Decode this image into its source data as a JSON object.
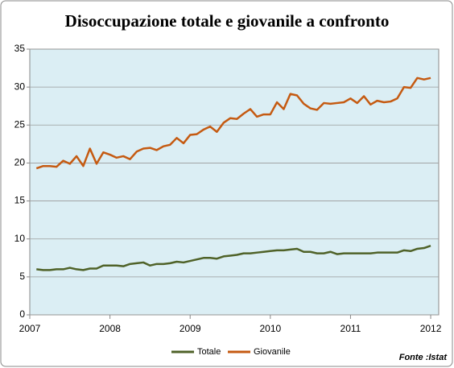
{
  "chart_data": {
    "type": "line",
    "title": "Disoccupazione totale e giovanile a confronto",
    "source": "Fonte :Istat",
    "x": [
      2007.083,
      2007.167,
      2007.25,
      2007.333,
      2007.417,
      2007.5,
      2007.583,
      2007.667,
      2007.75,
      2007.833,
      2007.917,
      2008.0,
      2008.083,
      2008.167,
      2008.25,
      2008.333,
      2008.417,
      2008.5,
      2008.583,
      2008.667,
      2008.75,
      2008.833,
      2008.917,
      2009.0,
      2009.083,
      2009.167,
      2009.25,
      2009.333,
      2009.417,
      2009.5,
      2009.583,
      2009.667,
      2009.75,
      2009.833,
      2009.917,
      2010.0,
      2010.083,
      2010.167,
      2010.25,
      2010.333,
      2010.417,
      2010.5,
      2010.583,
      2010.667,
      2010.75,
      2010.833,
      2010.917,
      2011.0,
      2011.083,
      2011.167,
      2011.25,
      2011.333,
      2011.417,
      2011.5,
      2011.583,
      2011.667,
      2011.75,
      2011.833,
      2011.917,
      2012.0
    ],
    "series": [
      {
        "name": "Totale",
        "color": "#4f6228",
        "values": [
          6.0,
          5.9,
          5.9,
          6.0,
          6.0,
          6.2,
          6.0,
          5.9,
          6.1,
          6.1,
          6.5,
          6.5,
          6.5,
          6.4,
          6.7,
          6.8,
          6.9,
          6.5,
          6.7,
          6.7,
          6.8,
          7.0,
          6.9,
          7.1,
          7.3,
          7.5,
          7.5,
          7.4,
          7.7,
          7.8,
          7.9,
          8.1,
          8.1,
          8.2,
          8.3,
          8.4,
          8.5,
          8.5,
          8.6,
          8.7,
          8.3,
          8.3,
          8.1,
          8.1,
          8.3,
          8.0,
          8.1,
          8.1,
          8.1,
          8.1,
          8.1,
          8.2,
          8.2,
          8.2,
          8.2,
          8.5,
          8.4,
          8.7,
          8.8,
          9.1
        ]
      },
      {
        "name": "Giovanile",
        "color": "#c55a11",
        "values": [
          19.3,
          19.6,
          19.6,
          19.5,
          20.3,
          19.9,
          20.9,
          19.6,
          21.9,
          19.9,
          21.4,
          21.1,
          20.7,
          20.9,
          20.5,
          21.5,
          21.9,
          22.0,
          21.7,
          22.2,
          22.4,
          23.3,
          22.6,
          23.7,
          23.8,
          24.4,
          24.8,
          24.1,
          25.3,
          25.9,
          25.8,
          26.5,
          27.1,
          26.1,
          26.4,
          26.4,
          28.0,
          27.1,
          29.1,
          28.9,
          27.8,
          27.2,
          27.0,
          27.9,
          27.8,
          27.9,
          28.0,
          28.5,
          27.9,
          28.8,
          27.7,
          28.2,
          28.0,
          28.1,
          28.5,
          30.0,
          29.9,
          31.2,
          31.0,
          31.2
        ]
      }
    ],
    "xlim": [
      2007,
      2012.1
    ],
    "xticks": [
      2007,
      2008,
      2009,
      2010,
      2011,
      2012
    ],
    "ylim": [
      0,
      35
    ],
    "yticks": [
      0,
      5,
      10,
      15,
      20,
      25,
      30,
      35
    ],
    "grid": true,
    "legend": "bottom"
  }
}
